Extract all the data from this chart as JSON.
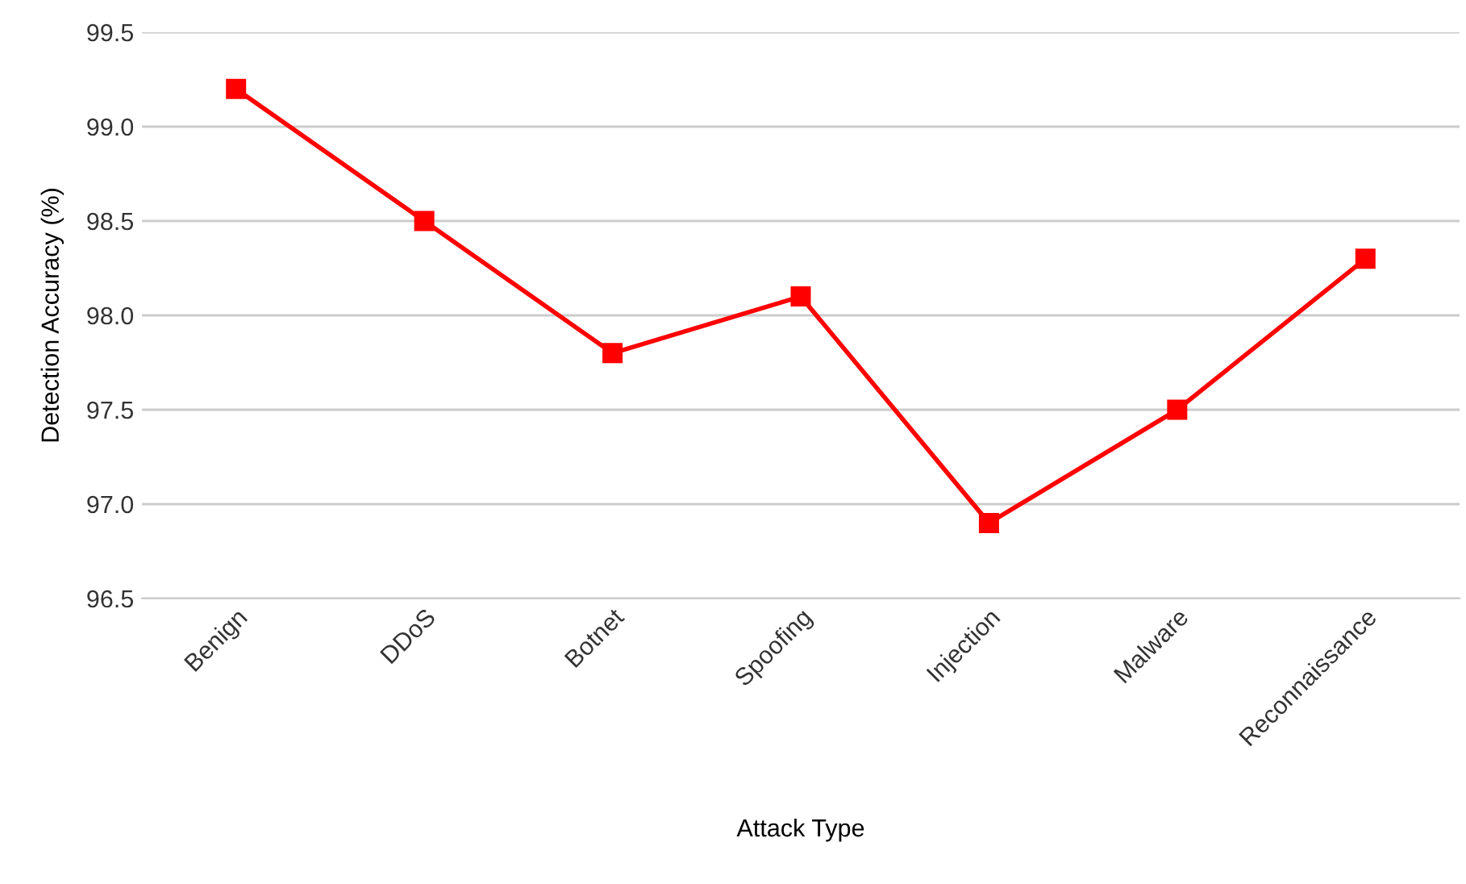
{
  "chart_data": {
    "type": "line",
    "xlabel": "Attack Type",
    "ylabel": "Detection Accuracy (%)",
    "categories": [
      "Benign",
      "DDoS",
      "Botnet",
      "Spoofing",
      "Injection",
      "Malware",
      "Reconnaissance"
    ],
    "series": [
      {
        "color": "#ff0000",
        "values": [
          99.2,
          98.5,
          97.8,
          98.1,
          96.9,
          97.5,
          98.3
        ]
      }
    ],
    "ylim": [
      96.5,
      99.5
    ],
    "yticks": [
      {
        "value": 96.5,
        "label": "96.5"
      },
      {
        "value": 97,
        "label": "97.0"
      },
      {
        "value": 97.5,
        "label": "97.5"
      },
      {
        "value": 98,
        "label": "98.0"
      },
      {
        "value": 98.5,
        "label": "98.5"
      },
      {
        "value": 99,
        "label": "99.0"
      },
      {
        "value": 99.5,
        "label": "99.5"
      }
    ],
    "grid": "y",
    "marker": "square",
    "line_style": "solid",
    "legend": false
  }
}
